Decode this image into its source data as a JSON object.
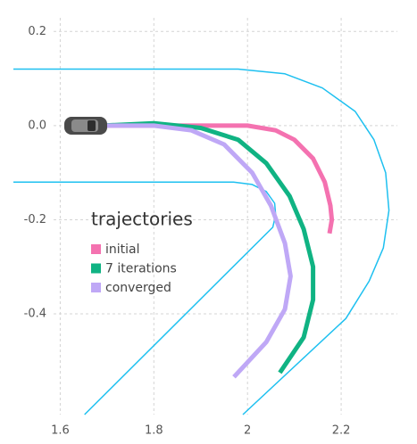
{
  "chart_data": {
    "type": "line",
    "xlim": [
      1.5,
      2.32
    ],
    "ylim": [
      -0.614,
      0.229
    ],
    "xticks": [
      1.6,
      1.8,
      2.0,
      2.2
    ],
    "yticks": [
      {
        "value": 0.2,
        "label": "0.2"
      },
      {
        "value": 0.0,
        "label": "0.0"
      },
      {
        "value": -0.2,
        "label": "-0.2"
      },
      {
        "value": -0.4,
        "label": "-0.4"
      }
    ],
    "grid": true,
    "boundaries": [
      {
        "color": "#1ec0f0",
        "x": [
          1.5,
          1.98,
          2.08,
          2.16,
          2.23,
          2.27,
          2.295,
          2.302,
          2.29,
          2.26,
          2.21,
          1.99
        ],
        "values": [
          0.12,
          0.12,
          0.11,
          0.08,
          0.03,
          -0.03,
          -0.1,
          -0.18,
          -0.26,
          -0.33,
          -0.41,
          -0.614
        ]
      },
      {
        "color": "#1ec0f0",
        "x": [
          1.5,
          1.97,
          2.01,
          2.04,
          2.058,
          2.06,
          2.054,
          1.652
        ],
        "values": [
          -0.12,
          -0.12,
          -0.125,
          -0.14,
          -0.165,
          -0.19,
          -0.216,
          -0.614
        ]
      }
    ],
    "legend_title": "trajectories",
    "legend_position": "left",
    "series": [
      {
        "name": "initial",
        "color": "#f472b0",
        "x": [
          1.69,
          1.95,
          2.0,
          2.06,
          2.1,
          2.14,
          2.165,
          2.177,
          2.18,
          2.175
        ],
        "values": [
          0,
          0,
          0,
          -0.01,
          -0.03,
          -0.07,
          -0.12,
          -0.17,
          -0.2,
          -0.229
        ]
      },
      {
        "name": "7 iterations",
        "color": "#10b383",
        "x": [
          1.69,
          1.8,
          1.9,
          1.98,
          2.04,
          2.09,
          2.12,
          2.14,
          2.14,
          2.12,
          2.069
        ],
        "values": [
          0,
          0.005,
          -0.005,
          -0.03,
          -0.08,
          -0.15,
          -0.22,
          -0.3,
          -0.37,
          -0.45,
          -0.525
        ]
      },
      {
        "name": "converged",
        "color": "#bfa8f6",
        "x": [
          1.69,
          1.8,
          1.88,
          1.95,
          2.01,
          2.05,
          2.08,
          2.092,
          2.08,
          2.04,
          1.971
        ],
        "values": [
          0,
          0,
          -0.01,
          -0.04,
          -0.1,
          -0.17,
          -0.25,
          -0.32,
          -0.39,
          -0.46,
          -0.534
        ]
      }
    ]
  }
}
